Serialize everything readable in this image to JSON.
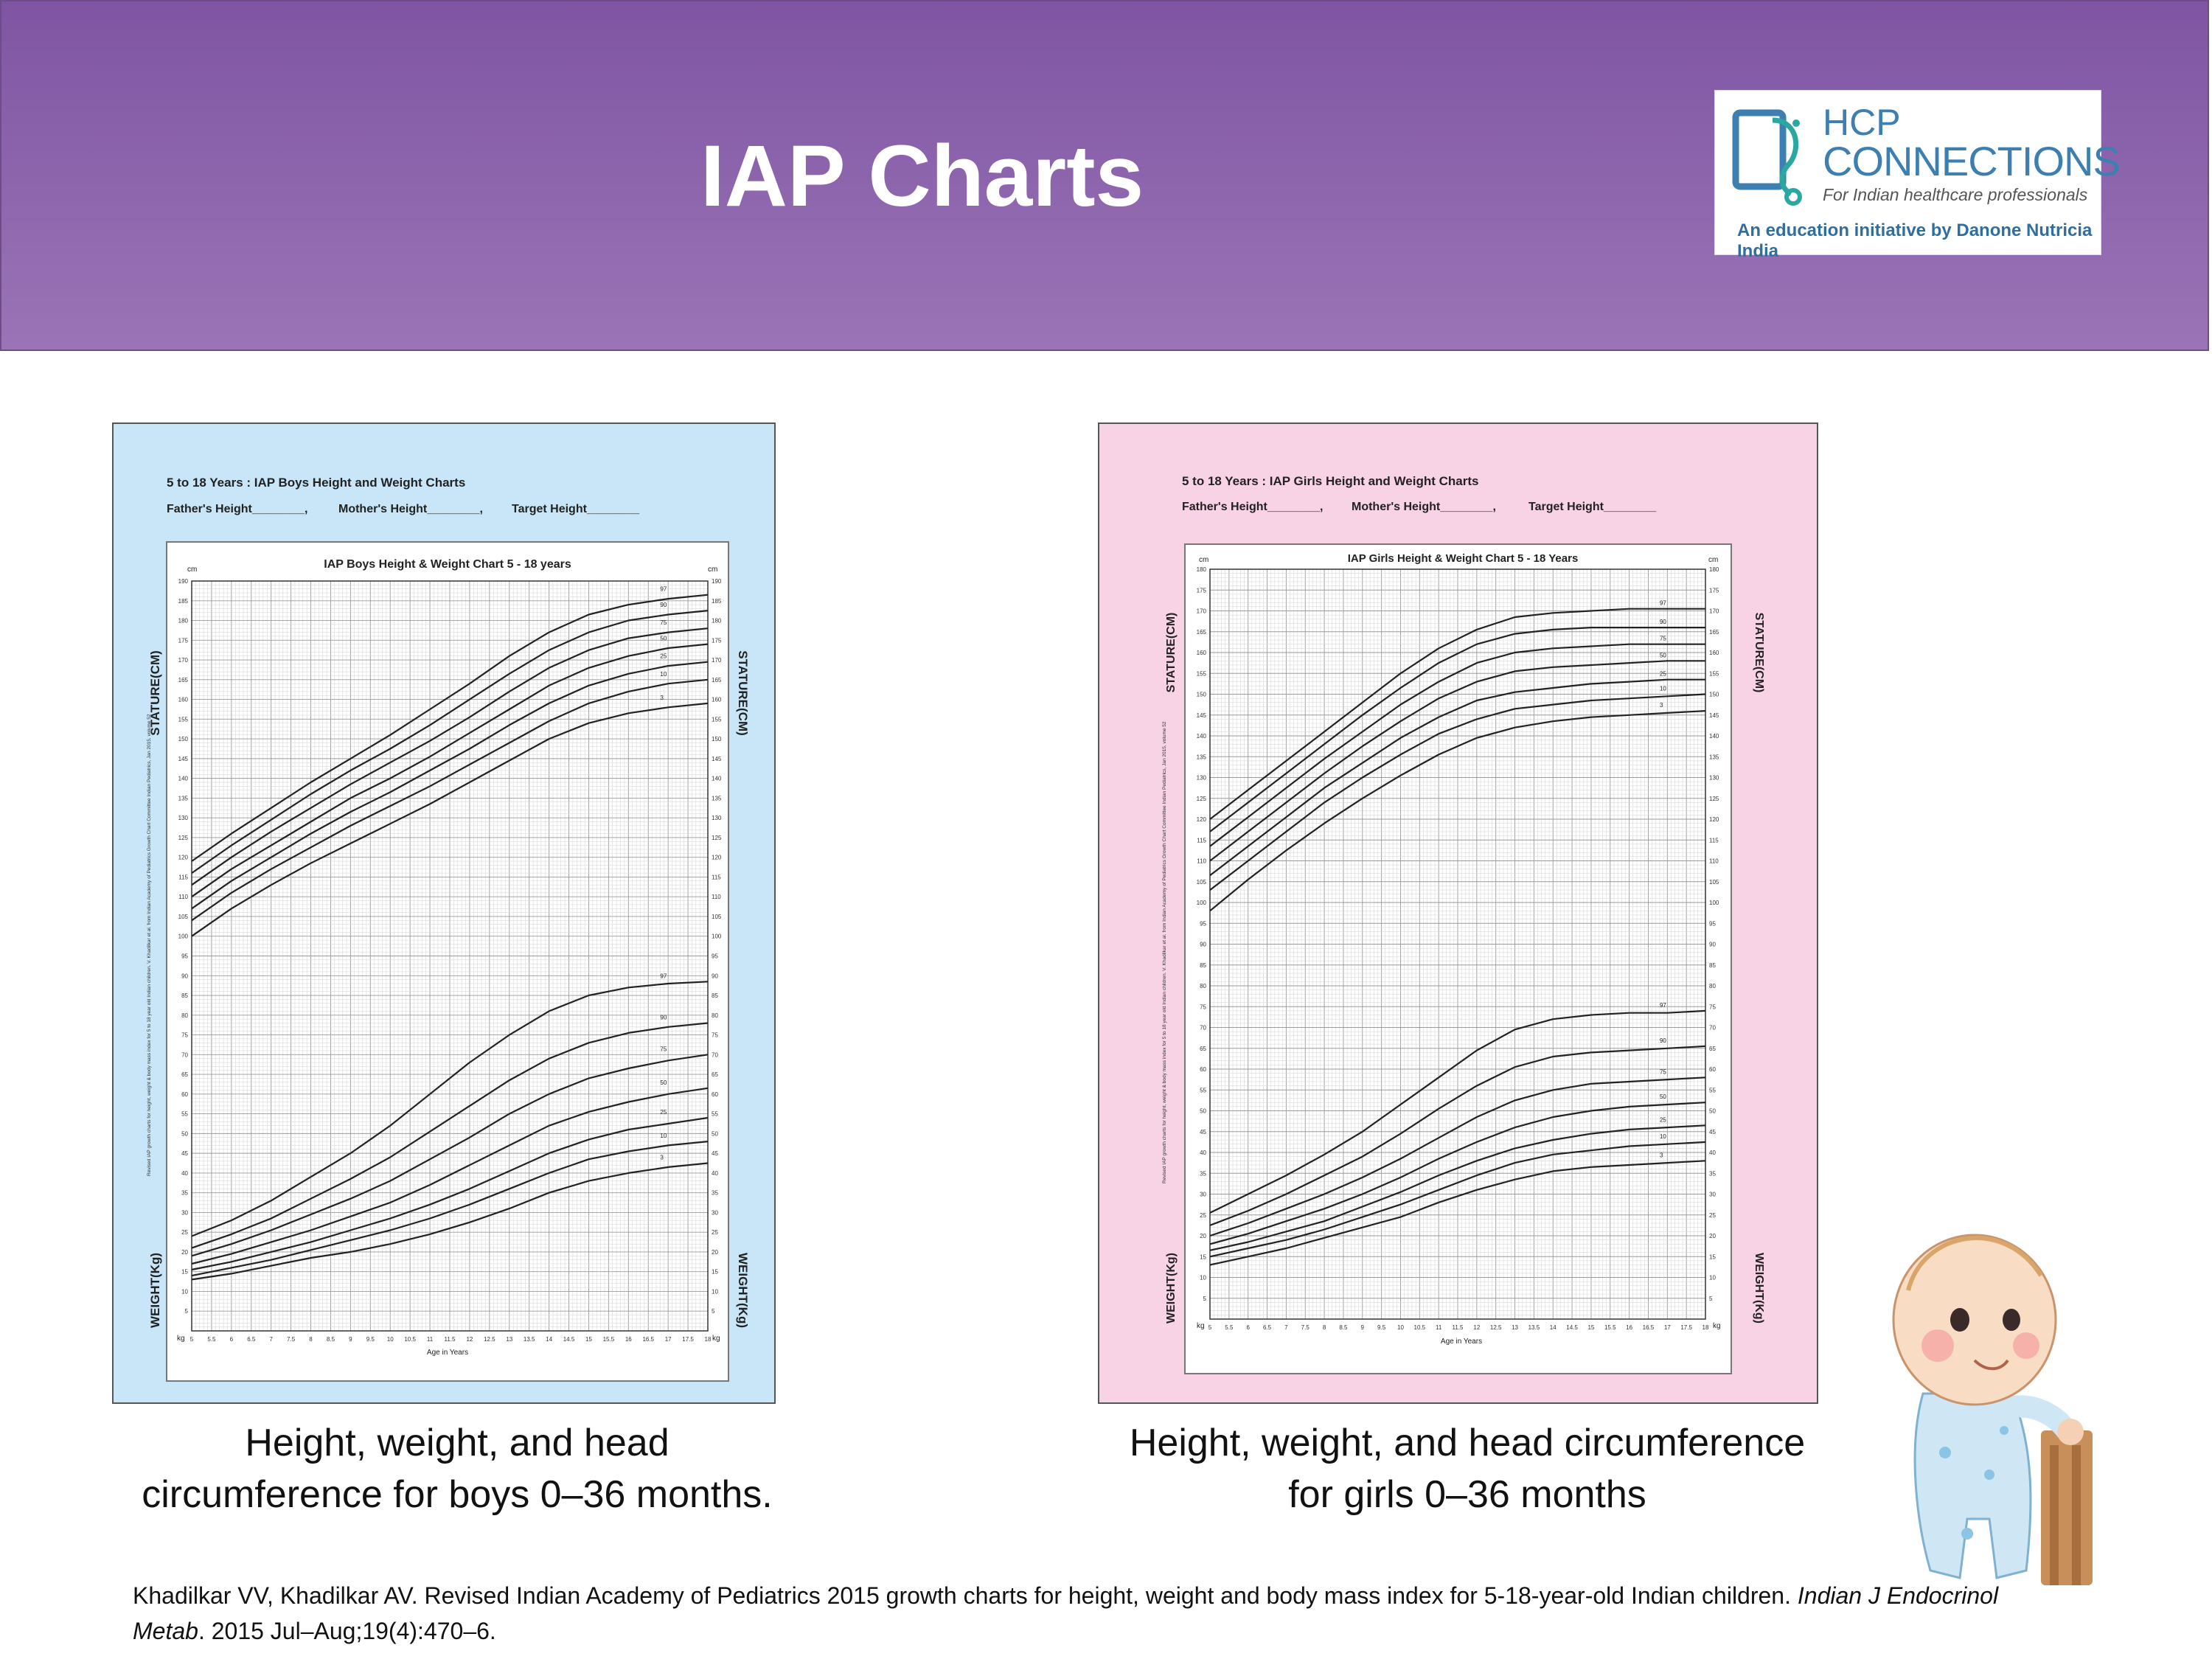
{
  "header": {
    "title": "IAP Charts"
  },
  "logo": {
    "line1": "HCP",
    "line2": "CONNECTIONS",
    "tagline": "For Indian healthcare professionals",
    "initiative": "An education initiative by Danone Nutricia India"
  },
  "colors": {
    "banner": "#8b62ab",
    "boys_bg": "#c8e6f7",
    "girls_bg": "#f8d3e5",
    "logo_blue": "#3c7fb0"
  },
  "boys_chart": {
    "header_title": "5 to 18 Years : IAP Boys Height and Weight Charts",
    "fathers_height": "Father's Height________,",
    "mothers_height": "Mother's Height________,",
    "target_height": "Target Height________",
    "inner_title": "IAP Boys Height & Weight Chart 5 - 18 years",
    "unit_top": "cm",
    "unit_bottom": "kg",
    "left_axis_top": "STATURE(CM)",
    "left_axis_bottom": "WEIGHT(Kg)",
    "right_axis_top": "STATURE(CM)",
    "right_axis_bottom": "WEIGHT(Kg)",
    "xlabel": "Age in Years",
    "source_note": "Revised IAP growth charts for height, weight & body mass index for 5 to 18 year old Indian children. V. Khadilkar et al. from Indian Academy of Pediatrics Growth Chart Committee Indian Pediatrics, Jan 2015, volume 52",
    "caption": "Height, weight, and head circumference for boys 0–36 months."
  },
  "girls_chart": {
    "header_title": "5 to 18 Years : IAP Girls Height and Weight Charts",
    "fathers_height": "Father's Height________,",
    "mothers_height": "Mother's Height________,",
    "target_height": "Target Height________",
    "inner_title": "IAP Girls Height & Weight Chart 5 - 18 Years",
    "unit_top": "cm",
    "unit_bottom": "kg",
    "left_axis_top": "STATURE(CM)",
    "left_axis_bottom": "WEIGHT(Kg)",
    "right_axis_top": "STATURE(CM)",
    "right_axis_bottom": "WEIGHT(Kg)",
    "xlabel": "Age in Years",
    "source_note": "Revised IAP growth charts for height, weight & body mass index for 5 to 18 year old Indian children. V. Khadilkar et al. from Indian Academy of Pediatrics Growth Chart Committee Indian Pediatrics, Jan 2015, volume 52",
    "caption": "Height, weight, and head circumference for girls 0–36 months"
  },
  "reference": {
    "part1": "Khadilkar VV, Khadilkar AV. Revised Indian Academy of Pediatrics 2015 growth charts for height, weight and body mass index for 5-18-year-old Indian children. ",
    "journal": "Indian J Endocrinol Metab",
    "part2": ". 2015 Jul–Aug;19(4):470–6."
  },
  "chart_data": [
    {
      "type": "line",
      "title": "IAP Boys Height & Weight Chart 5 - 18 years",
      "xlabel": "Age in Years",
      "ylabel": "cm / kg",
      "xlim": [
        5,
        18
      ],
      "ylim": [
        0,
        190
      ],
      "x_ticks": [
        "5",
        "5.5",
        "6",
        "6.5",
        "7",
        "7.5",
        "8",
        "8.5",
        "9",
        "9.5",
        "10",
        "10.5",
        "11",
        "11.5",
        "12",
        "12.5",
        "13",
        "13.5",
        "14",
        "14.5",
        "15",
        "15.5",
        "16",
        "16.5",
        "17",
        "17.5",
        "18"
      ],
      "percentiles": [
        "97",
        "90",
        "75",
        "50",
        "25",
        "10",
        "3"
      ],
      "x": [
        5,
        6,
        7,
        8,
        9,
        10,
        11,
        12,
        13,
        14,
        15,
        16,
        17,
        18
      ],
      "height_series": [
        {
          "name": "97",
          "values": [
            119,
            126,
            132.5,
            139,
            145,
            151,
            157.5,
            164,
            171,
            177,
            181.5,
            184,
            185.5,
            186.5
          ]
        },
        {
          "name": "90",
          "values": [
            116,
            123,
            129.5,
            136,
            142,
            147.5,
            153.5,
            160,
            166.5,
            172.5,
            177,
            180,
            181.5,
            182.5
          ]
        },
        {
          "name": "75",
          "values": [
            113,
            120,
            126.5,
            132.5,
            138.5,
            144,
            149.5,
            155.5,
            162,
            168,
            172.5,
            175.5,
            177,
            178
          ]
        },
        {
          "name": "50",
          "values": [
            110,
            117,
            123,
            129,
            135,
            140,
            145.5,
            151.5,
            157.5,
            163.5,
            168,
            171,
            173,
            174
          ]
        },
        {
          "name": "25",
          "values": [
            107,
            114,
            120,
            126,
            131.5,
            136.5,
            142,
            147.5,
            153.5,
            159,
            163.5,
            166.5,
            168.5,
            169.5
          ]
        },
        {
          "name": "10",
          "values": [
            104,
            111,
            117,
            122.5,
            128,
            133,
            138,
            143.5,
            149,
            154.5,
            159,
            162,
            164,
            165
          ]
        },
        {
          "name": "3",
          "values": [
            100,
            107,
            113,
            118.5,
            123.5,
            128.5,
            133.5,
            139,
            144.5,
            150,
            154,
            156.5,
            158,
            159
          ]
        }
      ],
      "weight_series": [
        {
          "name": "97",
          "values": [
            24,
            28,
            33,
            39,
            45,
            52,
            60,
            68,
            75,
            81,
            85,
            87,
            88,
            88.5
          ]
        },
        {
          "name": "90",
          "values": [
            21,
            24.5,
            28.5,
            33.5,
            38.5,
            44,
            50.5,
            57,
            63.5,
            69,
            73,
            75.5,
            77,
            78
          ]
        },
        {
          "name": "75",
          "values": [
            19,
            22,
            25.5,
            29.5,
            33.5,
            38,
            43.5,
            49,
            55,
            60,
            64,
            66.5,
            68.5,
            70
          ]
        },
        {
          "name": "50",
          "values": [
            17,
            19.5,
            22.5,
            25.5,
            29,
            32.5,
            37,
            42,
            47,
            52,
            55.5,
            58,
            60,
            61.5
          ]
        },
        {
          "name": "25",
          "values": [
            15.5,
            17.5,
            20,
            22.5,
            25.5,
            28.5,
            32,
            36,
            40.5,
            45,
            48.5,
            51,
            52.5,
            54
          ]
        },
        {
          "name": "10",
          "values": [
            14,
            16,
            18,
            20.5,
            23,
            25.5,
            28.5,
            32,
            36,
            40,
            43.5,
            45.5,
            47,
            48
          ]
        },
        {
          "name": "3",
          "values": [
            13,
            14.5,
            16.5,
            18.5,
            20,
            22,
            24.5,
            27.5,
            31,
            35,
            38,
            40,
            41.5,
            42.5
          ]
        }
      ]
    },
    {
      "type": "line",
      "title": "IAP Girls Height & Weight Chart 5 - 18 Years",
      "xlabel": "Age in Years",
      "ylabel": "cm / kg",
      "xlim": [
        5,
        18
      ],
      "ylim": [
        0,
        180
      ],
      "x_ticks": [
        "5",
        "5.5",
        "6",
        "6.5",
        "7",
        "7.5",
        "8",
        "8.5",
        "9",
        "9.5",
        "10",
        "10.5",
        "11",
        "11.5",
        "12",
        "12.5",
        "13",
        "13.5",
        "14",
        "14.5",
        "15",
        "15.5",
        "16",
        "16.5",
        "17",
        "17.5",
        "18"
      ],
      "percentiles": [
        "97",
        "90",
        "75",
        "50",
        "25",
        "10",
        "3"
      ],
      "x": [
        5,
        6,
        7,
        8,
        9,
        10,
        11,
        12,
        13,
        14,
        15,
        16,
        17,
        18
      ],
      "height_series": [
        {
          "name": "97",
          "values": [
            120,
            127,
            134,
            141,
            148,
            155,
            161,
            165.5,
            168.5,
            169.5,
            170,
            170.5,
            170.5,
            170.5
          ]
        },
        {
          "name": "90",
          "values": [
            117,
            124,
            131,
            138,
            145,
            151.5,
            157.5,
            162,
            164.5,
            165.5,
            166,
            166,
            166,
            166
          ]
        },
        {
          "name": "75",
          "values": [
            113.5,
            120.5,
            127.5,
            134.5,
            141,
            147.5,
            153,
            157.5,
            160,
            161,
            161.5,
            162,
            162,
            162
          ]
        },
        {
          "name": "50",
          "values": [
            110,
            117,
            124,
            131,
            137.5,
            143.5,
            149,
            153,
            155.5,
            156.5,
            157,
            157.5,
            158,
            158
          ]
        },
        {
          "name": "25",
          "values": [
            106.5,
            113.5,
            120.5,
            127.5,
            133.5,
            139.5,
            144.5,
            148.5,
            150.5,
            151.5,
            152.5,
            153,
            153.5,
            153.5
          ]
        },
        {
          "name": "10",
          "values": [
            103,
            110,
            117,
            124,
            130,
            135.5,
            140.5,
            144,
            146.5,
            147.5,
            148.5,
            149,
            149.5,
            150
          ]
        },
        {
          "name": "3",
          "values": [
            98,
            105.5,
            112.5,
            119,
            125,
            130.5,
            135.5,
            139.5,
            142,
            143.5,
            144.5,
            145,
            145.5,
            146
          ]
        }
      ],
      "weight_series": [
        {
          "name": "97",
          "values": [
            25.5,
            30,
            34.5,
            39.5,
            45,
            51.5,
            58,
            64.5,
            69.5,
            72,
            73,
            73.5,
            73.5,
            74
          ]
        },
        {
          "name": "90",
          "values": [
            22.5,
            26,
            30,
            34.5,
            39,
            44.5,
            50.5,
            56,
            60.5,
            63,
            64,
            64.5,
            65,
            65.5
          ]
        },
        {
          "name": "75",
          "values": [
            20,
            23,
            26.5,
            30,
            34,
            38.5,
            43.5,
            48.5,
            52.5,
            55,
            56.5,
            57,
            57.5,
            58
          ]
        },
        {
          "name": "50",
          "values": [
            18,
            20.5,
            23.5,
            26.5,
            30,
            34,
            38.5,
            42.5,
            46,
            48.5,
            50,
            51,
            51.5,
            52
          ]
        },
        {
          "name": "25",
          "values": [
            16.5,
            18.5,
            21,
            23.5,
            27,
            30.5,
            34.5,
            38,
            41,
            43,
            44.5,
            45.5,
            46,
            46.5
          ]
        },
        {
          "name": "10",
          "values": [
            15,
            17,
            19,
            21.5,
            24.5,
            27.5,
            31,
            34.5,
            37.5,
            39.5,
            40.5,
            41.5,
            42,
            42.5
          ]
        },
        {
          "name": "3",
          "values": [
            13,
            15,
            17,
            19.5,
            22,
            24.5,
            28,
            31,
            33.5,
            35.5,
            36.5,
            37,
            37.5,
            38
          ]
        }
      ]
    }
  ]
}
